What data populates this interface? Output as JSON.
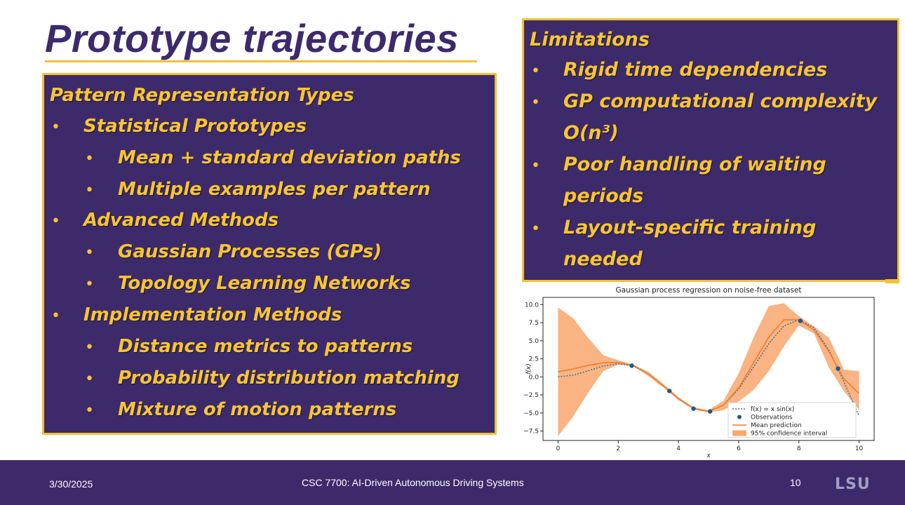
{
  "slide": {
    "title": "Prototype trajectories"
  },
  "left_panel": {
    "heading": "Pattern Representation Types",
    "items": [
      {
        "level": 1,
        "text": "Statistical Prototypes"
      },
      {
        "level": 2,
        "text": "Mean + standard deviation paths"
      },
      {
        "level": 2,
        "text": "Multiple examples per pattern"
      },
      {
        "level": 1,
        "text": "Advanced Methods"
      },
      {
        "level": 2,
        "text": "Gaussian Processes (GPs)"
      },
      {
        "level": 2,
        "text": "Topology Learning Networks"
      },
      {
        "level": 1,
        "text": "Implementation Methods"
      },
      {
        "level": 2,
        "text": "Distance metrics to patterns"
      },
      {
        "level": 2,
        "text": "Probability distribution matching"
      },
      {
        "level": 2,
        "text": "Mixture of motion patterns"
      }
    ]
  },
  "right_panel": {
    "heading": "Limitations",
    "lines": [
      {
        "bullet": true,
        "text": "Rigid time dependencies"
      },
      {
        "bullet": true,
        "text": "GP computational complexity"
      },
      {
        "bullet": false,
        "text": "O(n³)"
      },
      {
        "bullet": true,
        "text": "Poor handling of waiting"
      },
      {
        "bullet": false,
        "text": "periods"
      },
      {
        "bullet": true,
        "text": "Layout-specific training"
      },
      {
        "bullet": false,
        "text": "needed"
      }
    ]
  },
  "chart_data": {
    "type": "line",
    "title": "Gaussian process regression on noise-free dataset",
    "xlabel": "x",
    "ylabel": "f(x)",
    "xlim": [
      -0.5,
      10.5
    ],
    "ylim": [
      -8.8,
      11.0
    ],
    "xticks": [
      0,
      2,
      4,
      6,
      8,
      10
    ],
    "yticks": [
      -7.5,
      -5.0,
      -2.5,
      0.0,
      2.5,
      5.0,
      7.5,
      10.0
    ],
    "xtick_labels": [
      "0",
      "2",
      "4",
      "6",
      "8",
      "10"
    ],
    "ytick_labels": [
      "−7.5",
      "−5.0",
      "−2.5",
      "0.0",
      "2.5",
      "5.0",
      "7.5",
      "10.0"
    ],
    "legend_position": "lower-right",
    "legend": [
      "f(x) = x sin(x)",
      "Observations",
      "Mean prediction",
      "95% confidence interval"
    ],
    "series": [
      {
        "name": "f(x) = x sin(x)",
        "style": "dotted",
        "color": "#3b6e9e",
        "x": [
          0,
          0.5,
          1,
          1.5,
          2,
          2.5,
          3,
          3.5,
          4,
          4.5,
          5,
          5.5,
          6,
          6.5,
          7,
          7.5,
          8,
          8.5,
          9,
          9.5,
          10
        ],
        "y": [
          0,
          0.24,
          0.84,
          1.5,
          1.82,
          1.5,
          0.42,
          -1.23,
          -3.03,
          -4.4,
          -4.79,
          -3.89,
          -1.68,
          1.39,
          4.6,
          7.04,
          7.91,
          6.8,
          3.71,
          -0.72,
          -5.44
        ]
      },
      {
        "name": "Mean prediction",
        "style": "solid",
        "color": "#f07c2a",
        "x": [
          0,
          0.5,
          1,
          1.5,
          2,
          2.5,
          3,
          3.5,
          4,
          4.5,
          5,
          5.5,
          6,
          6.5,
          7,
          7.5,
          8,
          8.5,
          9,
          9.5,
          10
        ],
        "y": [
          0.7,
          1.1,
          1.6,
          1.95,
          2.0,
          1.6,
          0.4,
          -1.25,
          -3.0,
          -4.35,
          -4.78,
          -3.9,
          -1.5,
          2.0,
          5.5,
          7.9,
          7.9,
          6.5,
          3.5,
          -0.3,
          -2.3
        ]
      },
      {
        "name": "95% confidence interval",
        "style": "band",
        "color": "#f9a66c",
        "x": [
          0,
          0.5,
          1,
          1.5,
          2,
          2.5,
          3,
          3.5,
          4,
          4.5,
          5,
          5.5,
          6,
          6.5,
          7,
          7.5,
          8,
          8.5,
          9,
          9.5,
          10
        ],
        "lower": [
          -8.2,
          -5.5,
          -2.2,
          0.8,
          1.7,
          1.5,
          0.1,
          -1.5,
          -3.2,
          -4.5,
          -4.9,
          -4.6,
          -3.4,
          -1.8,
          0.8,
          4.2,
          7.1,
          6.0,
          1.3,
          -2.0,
          -4.6
        ],
        "upper": [
          9.6,
          8.1,
          5.4,
          3.0,
          2.3,
          1.7,
          0.7,
          -1.0,
          -2.8,
          -4.2,
          -4.6,
          -3.3,
          0.5,
          5.5,
          9.8,
          10.2,
          8.4,
          7.0,
          5.4,
          1.0,
          0.8
        ]
      },
      {
        "name": "Observations",
        "style": "points",
        "color": "#1f5a8a",
        "x": [
          2.45,
          3.7,
          4.5,
          5.05,
          8.05,
          9.3
        ],
        "y": [
          1.55,
          -1.95,
          -4.4,
          -4.78,
          7.75,
          1.15
        ]
      }
    ]
  },
  "footer": {
    "date": "3/30/2025",
    "course": "CSC 7700:  AI-Driven Autonomous Driving Systems",
    "page": "10",
    "logo": "LSU"
  }
}
